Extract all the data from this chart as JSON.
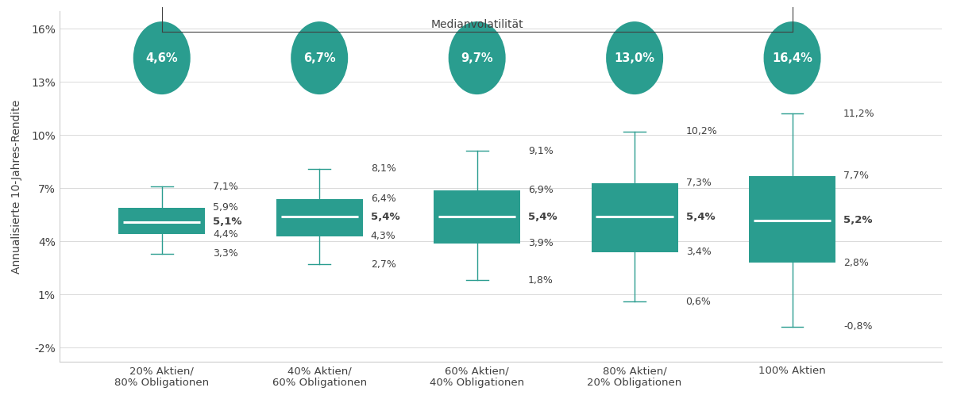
{
  "categories": [
    "20% Aktien/\n80% Obligationen",
    "40% Aktien/\n60% Obligationen",
    "60% Aktien/\n40% Obligationen",
    "80% Aktien/\n20% Obligationen",
    "100% Aktien"
  ],
  "x_positions": [
    1,
    2,
    3,
    4,
    5
  ],
  "box_lower": [
    4.4,
    4.3,
    3.9,
    3.4,
    2.8
  ],
  "box_upper": [
    5.9,
    6.4,
    6.9,
    7.3,
    7.7
  ],
  "median": [
    5.1,
    5.4,
    5.4,
    5.4,
    5.2
  ],
  "whisker_low": [
    3.3,
    2.7,
    1.8,
    0.6,
    -0.8
  ],
  "whisker_high": [
    7.1,
    8.1,
    9.1,
    10.2,
    11.2
  ],
  "volatility": [
    "4,6%",
    "6,7%",
    "9,7%",
    "13,0%",
    "16,4%"
  ],
  "box_color": "#2a9d8f",
  "median_line_color": "#ffffff",
  "whisker_color": "#2a9d8f",
  "background_color": "#ffffff",
  "ylabel": "Annualisierte 10-Jahres-Rendite",
  "ylim": [
    -2.8,
    17.0
  ],
  "yticks": [
    -2,
    1,
    4,
    7,
    10,
    13,
    16
  ],
  "ytick_labels": [
    "-2%",
    "1%",
    "4%",
    "7%",
    "10%",
    "13%",
    "16%"
  ],
  "box_width": 0.55,
  "title_annotation": "Medianvolatilität",
  "grid_color": "#cccccc",
  "text_color": "#404040",
  "font_size_labels": 9.0,
  "font_size_median": 9.5,
  "font_size_whisker": 9.0,
  "font_size_volatility": 10.5,
  "font_size_ylabel": 10,
  "font_size_xtick": 9.5
}
